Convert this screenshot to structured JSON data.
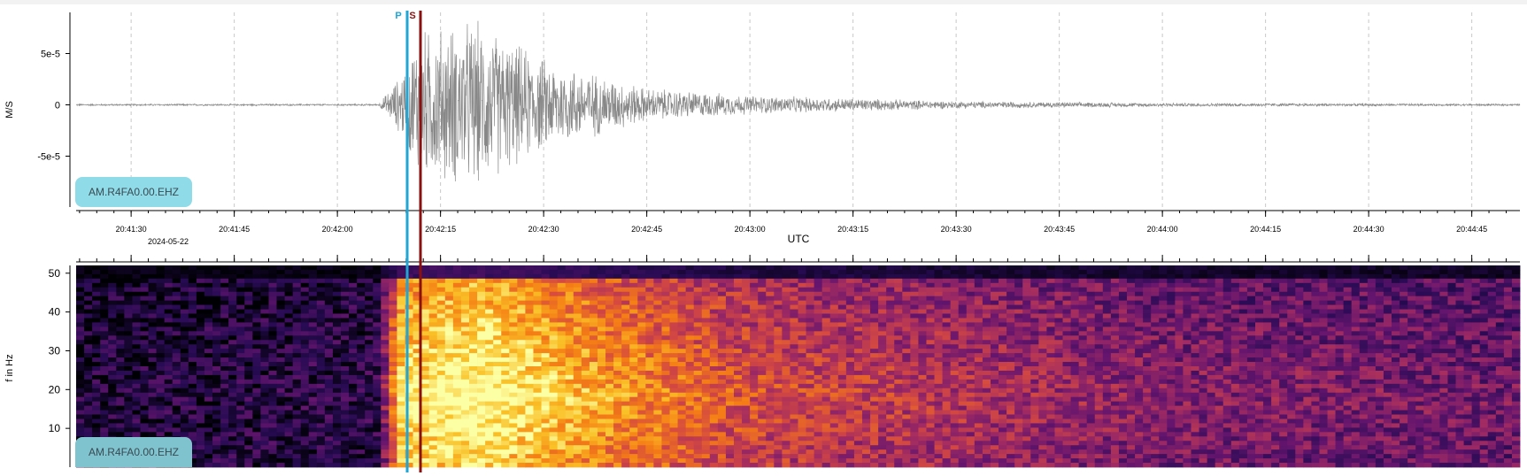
{
  "waveform_panel": {
    "ylabel": "M/S",
    "station": "AM.R4FA0.00.EHZ",
    "y_ticks": [
      "5e-5",
      "0",
      "-5e-5"
    ],
    "x_ticks": [
      "20:41:30",
      "20:41:45",
      "20:42:00",
      "20:42:15",
      "20:42:30",
      "20:42:45",
      "20:43:00",
      "20:43:15",
      "20:43:30",
      "20:43:45",
      "20:44:00",
      "20:44:15",
      "20:44:30",
      "20:44:45"
    ],
    "date_label": "2024-05-22",
    "xlabel": "UTC"
  },
  "spectrogram_panel": {
    "ylabel": "f in Hz",
    "station": "AM.R4FA0.00.EHZ",
    "y_ticks": [
      "50",
      "40",
      "30",
      "20",
      "10"
    ]
  },
  "picks": {
    "p_label": "P",
    "s_label": "S",
    "p_time": "20:42:07",
    "s_time": "20:42:09",
    "p_color": "#1fa6d6",
    "s_color": "#8b1010"
  },
  "chart_data": {
    "type": "line",
    "xlabel": "UTC",
    "ylabel": "M/S",
    "x_range": [
      "20:41:22",
      "20:44:52"
    ],
    "ylim": [
      -0.0001,
      0.0001
    ],
    "grid": true,
    "trace_color": "#888888",
    "envelope": [
      {
        "t": "20:41:22",
        "amp": 1e-06
      },
      {
        "t": "20:42:06",
        "amp": 1e-06
      },
      {
        "t": "20:42:09",
        "amp": 3e-05
      },
      {
        "t": "20:42:12",
        "amp": 8e-05
      },
      {
        "t": "20:42:20",
        "amp": 9e-05
      },
      {
        "t": "20:42:30",
        "amp": 5e-05
      },
      {
        "t": "20:42:45",
        "amp": 1.8e-05
      },
      {
        "t": "20:43:00",
        "amp": 1e-05
      },
      {
        "t": "20:43:15",
        "amp": 7e-06
      },
      {
        "t": "20:43:30",
        "amp": 4e-06
      },
      {
        "t": "20:44:00",
        "amp": 2e-06
      },
      {
        "t": "20:44:52",
        "amp": 1e-06
      }
    ],
    "spectrogram": {
      "freq_range": [
        0,
        52
      ],
      "colormap": "inferno",
      "energy": [
        {
          "t": "20:41:22",
          "level": 0.1
        },
        {
          "t": "20:42:06",
          "level": 0.15
        },
        {
          "t": "20:42:09",
          "level": 0.9
        },
        {
          "t": "20:42:20",
          "level": 1.0
        },
        {
          "t": "20:42:40",
          "level": 0.75
        },
        {
          "t": "20:43:00",
          "level": 0.55
        },
        {
          "t": "20:43:30",
          "level": 0.45
        },
        {
          "t": "20:44:00",
          "level": 0.35
        },
        {
          "t": "20:44:52",
          "level": 0.3
        }
      ]
    }
  }
}
